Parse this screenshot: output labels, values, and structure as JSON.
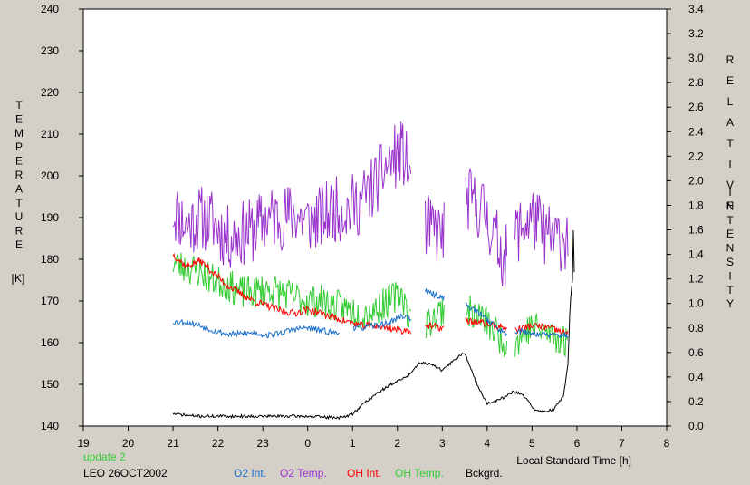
{
  "chart_data": {
    "type": "line",
    "x_axis": {
      "label": "Local Standard Time [h]",
      "range": [
        19,
        32
      ],
      "ticks": [
        19,
        20,
        21,
        22,
        23,
        24,
        25,
        26,
        27,
        28,
        29,
        30,
        31,
        32
      ],
      "tick_labels": [
        "19",
        "20",
        "21",
        "22",
        "23",
        "0",
        "1",
        "2",
        "3",
        "4",
        "5",
        "6",
        "7",
        "8"
      ]
    },
    "y_left": {
      "label_letters": [
        "T",
        "E",
        "M",
        "P",
        "E",
        "R",
        "A",
        "T",
        "U",
        "R",
        "E"
      ],
      "unit": "[K]",
      "range": [
        140,
        240
      ],
      "ticks": [
        140,
        150,
        160,
        170,
        180,
        190,
        200,
        210,
        220,
        230,
        240
      ],
      "tick_labels": [
        "140",
        "150",
        "160",
        "170",
        "180",
        "190",
        "200",
        "210",
        "220",
        "230",
        "240"
      ]
    },
    "y_right": {
      "label_word1": [
        "R",
        "E",
        "L",
        "A",
        "T",
        "I",
        "V",
        "E"
      ],
      "label_word2": [
        "I",
        "N",
        "T",
        "E",
        "N",
        "S",
        "I",
        "T",
        "Y"
      ],
      "range": [
        0,
        3.4
      ],
      "ticks": [
        0,
        0.2,
        0.4,
        0.6,
        0.8,
        1.0,
        1.2,
        1.4,
        1.6,
        1.8,
        2.0,
        2.2,
        2.4,
        2.6,
        2.8,
        3.0,
        3.2,
        3.4
      ],
      "tick_labels": [
        "0.0",
        "0.2",
        "0.4",
        "0.6",
        "0.8",
        "1.0",
        "1.2",
        "1.4",
        "1.6",
        "1.8",
        "2.0",
        "2.2",
        "2.4",
        "2.6",
        "2.8",
        "3.0",
        "3.2",
        "3.4"
      ]
    },
    "grid": false,
    "series": [
      {
        "name": "O2 Temp.",
        "color": "#9933cc",
        "axis": "left",
        "noise": 8,
        "seed": 11,
        "points": [
          [
            21.0,
            192
          ],
          [
            21.3,
            188
          ],
          [
            21.6,
            190
          ],
          [
            21.9,
            189
          ],
          [
            22.2,
            185
          ],
          [
            22.5,
            186
          ],
          [
            22.8,
            187
          ],
          [
            23.1,
            190
          ],
          [
            23.4,
            190
          ],
          [
            23.7,
            191
          ],
          [
            24.0,
            189
          ],
          [
            24.3,
            190
          ],
          [
            24.6,
            192
          ],
          [
            24.9,
            192
          ],
          [
            25.2,
            194
          ],
          [
            25.5,
            198
          ],
          [
            25.8,
            203
          ],
          [
            26.1,
            206
          ],
          [
            26.3,
            200
          ],
          [
            26.6,
            188
          ],
          [
            27.0,
            186
          ],
          [
            27.5,
            195
          ],
          [
            27.9,
            192
          ],
          [
            28.4,
            180
          ],
          [
            28.6,
            186
          ],
          [
            29.0,
            190
          ],
          [
            29.4,
            185
          ],
          [
            29.8,
            185
          ]
        ],
        "gaps": [
          [
            26.3,
            26.6
          ],
          [
            27.05,
            27.5
          ],
          [
            28.45,
            28.6
          ]
        ]
      },
      {
        "name": "OH Temp.",
        "color": "#33cc33",
        "axis": "left",
        "noise": 4,
        "seed": 23,
        "points": [
          [
            21.0,
            179
          ],
          [
            21.3,
            178
          ],
          [
            21.6,
            177
          ],
          [
            21.9,
            175
          ],
          [
            22.2,
            174
          ],
          [
            22.5,
            172
          ],
          [
            22.8,
            172
          ],
          [
            23.1,
            173
          ],
          [
            23.4,
            172
          ],
          [
            23.7,
            171
          ],
          [
            24.0,
            170
          ],
          [
            24.3,
            170
          ],
          [
            24.6,
            169
          ],
          [
            24.9,
            168
          ],
          [
            25.2,
            167
          ],
          [
            25.5,
            168
          ],
          [
            25.8,
            170
          ],
          [
            26.1,
            172
          ],
          [
            26.3,
            165
          ],
          [
            26.6,
            164
          ],
          [
            27.0,
            168
          ],
          [
            27.5,
            168
          ],
          [
            27.9,
            166
          ],
          [
            28.4,
            160
          ],
          [
            28.6,
            160
          ],
          [
            29.0,
            164
          ],
          [
            29.4,
            162
          ],
          [
            29.8,
            160
          ]
        ],
        "gaps": [
          [
            26.3,
            26.6
          ],
          [
            27.05,
            27.5
          ],
          [
            28.45,
            28.6
          ]
        ]
      },
      {
        "name": "OH Int.",
        "color": "#ff0000",
        "axis": "right",
        "noise": 0.03,
        "seed": 37,
        "points": [
          [
            21.0,
            1.4
          ],
          [
            21.3,
            1.3
          ],
          [
            21.6,
            1.35
          ],
          [
            21.9,
            1.25
          ],
          [
            22.2,
            1.15
          ],
          [
            22.5,
            1.08
          ],
          [
            22.8,
            1.02
          ],
          [
            23.1,
            0.98
          ],
          [
            23.4,
            0.94
          ],
          [
            23.7,
            0.92
          ],
          [
            24.0,
            0.95
          ],
          [
            24.3,
            0.92
          ],
          [
            24.6,
            0.88
          ],
          [
            24.9,
            0.85
          ],
          [
            25.2,
            0.82
          ],
          [
            25.5,
            0.82
          ],
          [
            25.8,
            0.8
          ],
          [
            26.1,
            0.78
          ],
          [
            26.3,
            0.78
          ],
          [
            26.6,
            0.82
          ],
          [
            27.0,
            0.8
          ],
          [
            27.5,
            0.86
          ],
          [
            27.9,
            0.84
          ],
          [
            28.4,
            0.8
          ],
          [
            28.6,
            0.78
          ],
          [
            29.0,
            0.82
          ],
          [
            29.4,
            0.8
          ],
          [
            29.8,
            0.75
          ]
        ],
        "gaps": [
          [
            26.3,
            26.6
          ],
          [
            27.05,
            27.5
          ],
          [
            28.45,
            28.6
          ]
        ]
      },
      {
        "name": "O2 Int.",
        "color": "#1a6fcc",
        "axis": "right",
        "noise": 0.025,
        "seed": 53,
        "points": [
          [
            21.0,
            0.85
          ],
          [
            21.3,
            0.85
          ],
          [
            21.6,
            0.82
          ],
          [
            21.9,
            0.78
          ],
          [
            22.2,
            0.75
          ],
          [
            22.5,
            0.75
          ],
          [
            22.8,
            0.76
          ],
          [
            23.1,
            0.74
          ],
          [
            23.4,
            0.76
          ],
          [
            23.7,
            0.79
          ],
          [
            24.0,
            0.8
          ],
          [
            24.3,
            0.78
          ],
          [
            24.6,
            0.76
          ],
          [
            24.9,
            0.8
          ],
          [
            25.2,
            0.8
          ],
          [
            25.5,
            0.82
          ],
          [
            25.8,
            0.84
          ],
          [
            26.1,
            0.9
          ],
          [
            26.3,
            0.88
          ],
          [
            26.6,
            1.1
          ],
          [
            27.0,
            1.05
          ],
          [
            27.5,
            1.0
          ],
          [
            27.9,
            0.9
          ],
          [
            28.4,
            0.75
          ],
          [
            28.6,
            0.78
          ],
          [
            29.0,
            0.76
          ],
          [
            29.4,
            0.74
          ],
          [
            29.8,
            0.74
          ]
        ],
        "gaps": [
          [
            24.7,
            25.0
          ],
          [
            26.3,
            26.6
          ],
          [
            27.05,
            27.5
          ],
          [
            28.45,
            28.6
          ]
        ]
      },
      {
        "name": "Bckgrd.",
        "color": "#000000",
        "axis": "right",
        "noise": 0.012,
        "seed": 71,
        "points": [
          [
            21.0,
            0.1
          ],
          [
            21.5,
            0.08
          ],
          [
            22.0,
            0.08
          ],
          [
            22.5,
            0.08
          ],
          [
            23.0,
            0.08
          ],
          [
            23.5,
            0.08
          ],
          [
            24.0,
            0.08
          ],
          [
            24.5,
            0.07
          ],
          [
            24.8,
            0.07
          ],
          [
            25.0,
            0.1
          ],
          [
            25.3,
            0.2
          ],
          [
            25.6,
            0.28
          ],
          [
            25.9,
            0.35
          ],
          [
            26.2,
            0.4
          ],
          [
            26.5,
            0.52
          ],
          [
            26.8,
            0.5
          ],
          [
            27.0,
            0.45
          ],
          [
            27.3,
            0.55
          ],
          [
            27.5,
            0.6
          ],
          [
            27.7,
            0.4
          ],
          [
            28.0,
            0.18
          ],
          [
            28.3,
            0.22
          ],
          [
            28.6,
            0.28
          ],
          [
            28.8,
            0.25
          ],
          [
            29.1,
            0.12
          ],
          [
            29.3,
            0.12
          ],
          [
            29.5,
            0.14
          ],
          [
            29.7,
            0.25
          ],
          [
            29.8,
            0.5
          ],
          [
            29.85,
            1.0
          ],
          [
            29.9,
            1.2
          ],
          [
            29.92,
            1.6
          ],
          [
            29.95,
            1.1
          ]
        ],
        "gaps": []
      }
    ]
  },
  "footer": {
    "update_note": "update 2",
    "update_color": "#33cc33",
    "station_date": "LEO 26OCT2002",
    "legend": [
      {
        "label": "O2 Int.",
        "color": "#1a6fcc"
      },
      {
        "label": "O2 Temp.",
        "color": "#9933cc"
      },
      {
        "label": "OH Int.",
        "color": "#ff0000"
      },
      {
        "label": "OH Temp.",
        "color": "#33cc33"
      },
      {
        "label": "Bckgrd.",
        "color": "#000000"
      }
    ]
  }
}
